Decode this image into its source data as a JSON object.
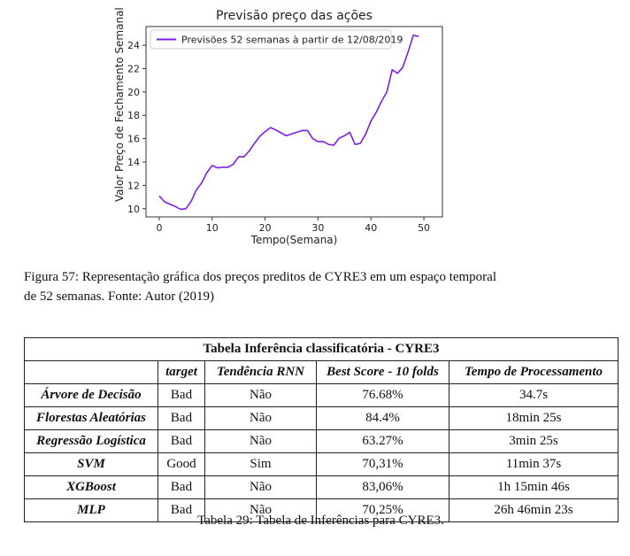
{
  "chart_data": {
    "type": "line",
    "title": "Previsão preço das ações",
    "xlabel": "Tempo(Semana)",
    "ylabel": "Valor Preço de Fechamento Semanal",
    "xlim": [
      -2.5,
      53.5
    ],
    "ylim": [
      9.3,
      25.6
    ],
    "xticks": [
      0,
      10,
      20,
      30,
      40,
      50
    ],
    "yticks": [
      10,
      12,
      14,
      16,
      18,
      20,
      22,
      24
    ],
    "legend_position": "top-left",
    "series_color": "#7b1fe6",
    "series": [
      {
        "name": "Previsões 52 semanas à partir de 12/08/2019",
        "x": [
          0,
          1,
          2,
          3,
          4,
          5,
          6,
          7,
          8,
          9,
          10,
          11,
          12,
          13,
          14,
          15,
          16,
          17,
          18,
          19,
          20,
          21,
          22,
          23,
          24,
          25,
          26,
          27,
          28,
          29,
          30,
          31,
          32,
          33,
          34,
          35,
          36,
          37,
          38,
          39,
          40,
          41,
          42,
          43,
          44,
          45,
          46,
          47,
          48,
          49,
          50,
          51
        ],
        "values": [
          11.1,
          10.6,
          10.4,
          10.2,
          9.95,
          10.0,
          10.6,
          11.6,
          12.2,
          13.1,
          13.7,
          13.5,
          13.55,
          13.55,
          13.8,
          14.45,
          14.45,
          14.95,
          15.6,
          16.2,
          16.6,
          16.95,
          16.75,
          16.5,
          16.25,
          16.4,
          16.55,
          16.7,
          16.7,
          16.0,
          15.75,
          15.75,
          15.5,
          15.45,
          16.05,
          16.25,
          16.55,
          15.5,
          15.6,
          16.4,
          17.5,
          18.25,
          19.2,
          20.0,
          21.9,
          21.6,
          22.1,
          23.4,
          24.85,
          24.75,
          null,
          null
        ]
      }
    ]
  },
  "caption": {
    "line1": "Figura 57: Representação gráfica dos preços preditos de CYRE3 em um espaço temporal",
    "line2": "de 52 semanas. Fonte: Autor (2019)"
  },
  "table": {
    "title": "Tabela Inferência classificatória - CYRE3",
    "headers": [
      "",
      "target",
      "Tendência RNN",
      "Best Score - 10 folds",
      "Tempo de Processamento"
    ],
    "rows": [
      [
        "Árvore de Decisão",
        "Bad",
        "Não",
        "76.68%",
        "34.7s"
      ],
      [
        "Florestas Aleatórias",
        "Bad",
        "Não",
        "84.4%",
        "18min 25s"
      ],
      [
        "Regressão Logística",
        "Bad",
        "Não",
        "63.27%",
        "3min 25s"
      ],
      [
        "SVM",
        "Good",
        "Sim",
        "70,31%",
        "11min 37s"
      ],
      [
        "XGBoost",
        "Bad",
        "Não",
        "83,06%",
        "1h 15min 46s"
      ],
      [
        "MLP",
        "Bad",
        "Não",
        "70,25%",
        "26h 46min 23s"
      ]
    ],
    "caption": "Tabela 29: Tabela de Inferências para CYRE3."
  }
}
